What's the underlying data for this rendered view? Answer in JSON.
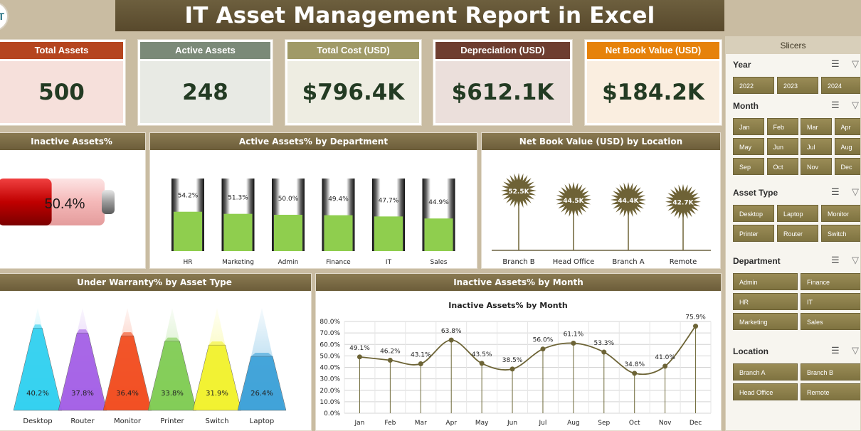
{
  "header": {
    "title": "IT Asset Management Report in Excel",
    "logo_text": "T"
  },
  "kpis": [
    {
      "label": "Total Assets",
      "value": "500",
      "head_color": "#b5451f",
      "body_color": "#f6e0db"
    },
    {
      "label": "Active Assets",
      "value": "248",
      "head_color": "#7b8a78",
      "body_color": "#e8eae4"
    },
    {
      "label": "Total Cost (USD)",
      "value": "$796.4K",
      "head_color": "#a09a67",
      "body_color": "#eeede2"
    },
    {
      "label": "Depreciation (USD)",
      "value": "$612.1K",
      "head_color": "#6e3e30",
      "body_color": "#ebdfdb"
    },
    {
      "label": "Net Book Value (USD)",
      "value": "$184.2K",
      "head_color": "#e6820b",
      "body_color": "#faeee0"
    }
  ],
  "panels": {
    "inactive": {
      "title": "Inactive Assets%",
      "value": "50.4%"
    },
    "active_dept": {
      "title": "Active Assets% by Department"
    },
    "nbv_location": {
      "title": "Net Book Value (USD) by Location"
    },
    "warranty": {
      "title": "Under Warranty% by Asset Type"
    },
    "inactive_month": {
      "title": "Inactive Assets% by Month"
    }
  },
  "chart_data": [
    {
      "type": "bar",
      "categories": [
        "HR",
        "Marketing",
        "Admin",
        "Finance",
        "IT",
        "Sales"
      ],
      "values": [
        54.2,
        51.3,
        50.0,
        49.4,
        47.7,
        44.9
      ],
      "labels": [
        "54.2%",
        "51.3%",
        "50.0%",
        "49.4%",
        "47.7%",
        "44.9%"
      ],
      "title": "Active Assets% by Department",
      "ylim": [
        0,
        100
      ]
    },
    {
      "type": "bar",
      "categories": [
        "Branch B",
        "Head Office",
        "Branch A",
        "Remote"
      ],
      "values": [
        52.5,
        44.5,
        44.4,
        42.7
      ],
      "labels": [
        "52.5K",
        "44.5K",
        "44.4K",
        "42.7K"
      ],
      "title": "Net Book Value (USD) by Location"
    },
    {
      "type": "bar",
      "categories": [
        "Desktop",
        "Router",
        "Monitor",
        "Printer",
        "Switch",
        "Laptop"
      ],
      "values": [
        40.2,
        37.8,
        36.4,
        33.8,
        31.9,
        26.4
      ],
      "labels": [
        "40.2%",
        "37.8%",
        "36.4%",
        "33.8%",
        "31.9%",
        "26.4%"
      ],
      "colors": [
        "#2ed0f0",
        "#a35ee6",
        "#f24a1c",
        "#7fcc52",
        "#f2f22a",
        "#3aa0d8"
      ],
      "title": "Under Warranty% by Asset Type"
    },
    {
      "type": "line",
      "title": "Inactive Assets% by Month",
      "categories": [
        "Jan",
        "Feb",
        "Mar",
        "Apr",
        "May",
        "Jun",
        "Jul",
        "Aug",
        "Sep",
        "Oct",
        "Nov",
        "Dec"
      ],
      "values": [
        49.1,
        46.2,
        43.1,
        63.8,
        43.5,
        38.5,
        56.0,
        61.1,
        53.3,
        34.8,
        41.0,
        75.9
      ],
      "labels": [
        "49.1%",
        "46.2%",
        "43.1%",
        "63.8%",
        "43.5%",
        "38.5%",
        "56.0%",
        "61.1%",
        "53.3%",
        "34.8%",
        "41.0%",
        "75.9%"
      ],
      "ylim": [
        0,
        80
      ],
      "yticks": [
        "0.0%",
        "10.0%",
        "20.0%",
        "30.0%",
        "40.0%",
        "50.0%",
        "60.0%",
        "70.0%",
        "80.0%"
      ],
      "grid": true
    }
  ],
  "slicers": {
    "title": "Slicers",
    "groups": [
      {
        "title": "Year",
        "items": [
          "2022",
          "2023",
          "2024"
        ]
      },
      {
        "title": "Month",
        "items": [
          "Jan",
          "Feb",
          "Mar",
          "Apr",
          "May",
          "Jun",
          "Jul",
          "Aug",
          "Sep",
          "Oct",
          "Nov",
          "Dec"
        ]
      },
      {
        "title": "Asset Type",
        "items": [
          "Desktop",
          "Laptop",
          "Monitor",
          "Printer",
          "Router",
          "Switch"
        ]
      },
      {
        "title": "Department",
        "items": [
          "Admin",
          "Finance",
          "HR",
          "IT",
          "Marketing",
          "Sales"
        ]
      },
      {
        "title": "Location",
        "items": [
          "Branch A",
          "Branch B",
          "Head Office",
          "Remote"
        ]
      }
    ],
    "icons": [
      "multi-select-icon",
      "clear-filter-icon"
    ]
  }
}
